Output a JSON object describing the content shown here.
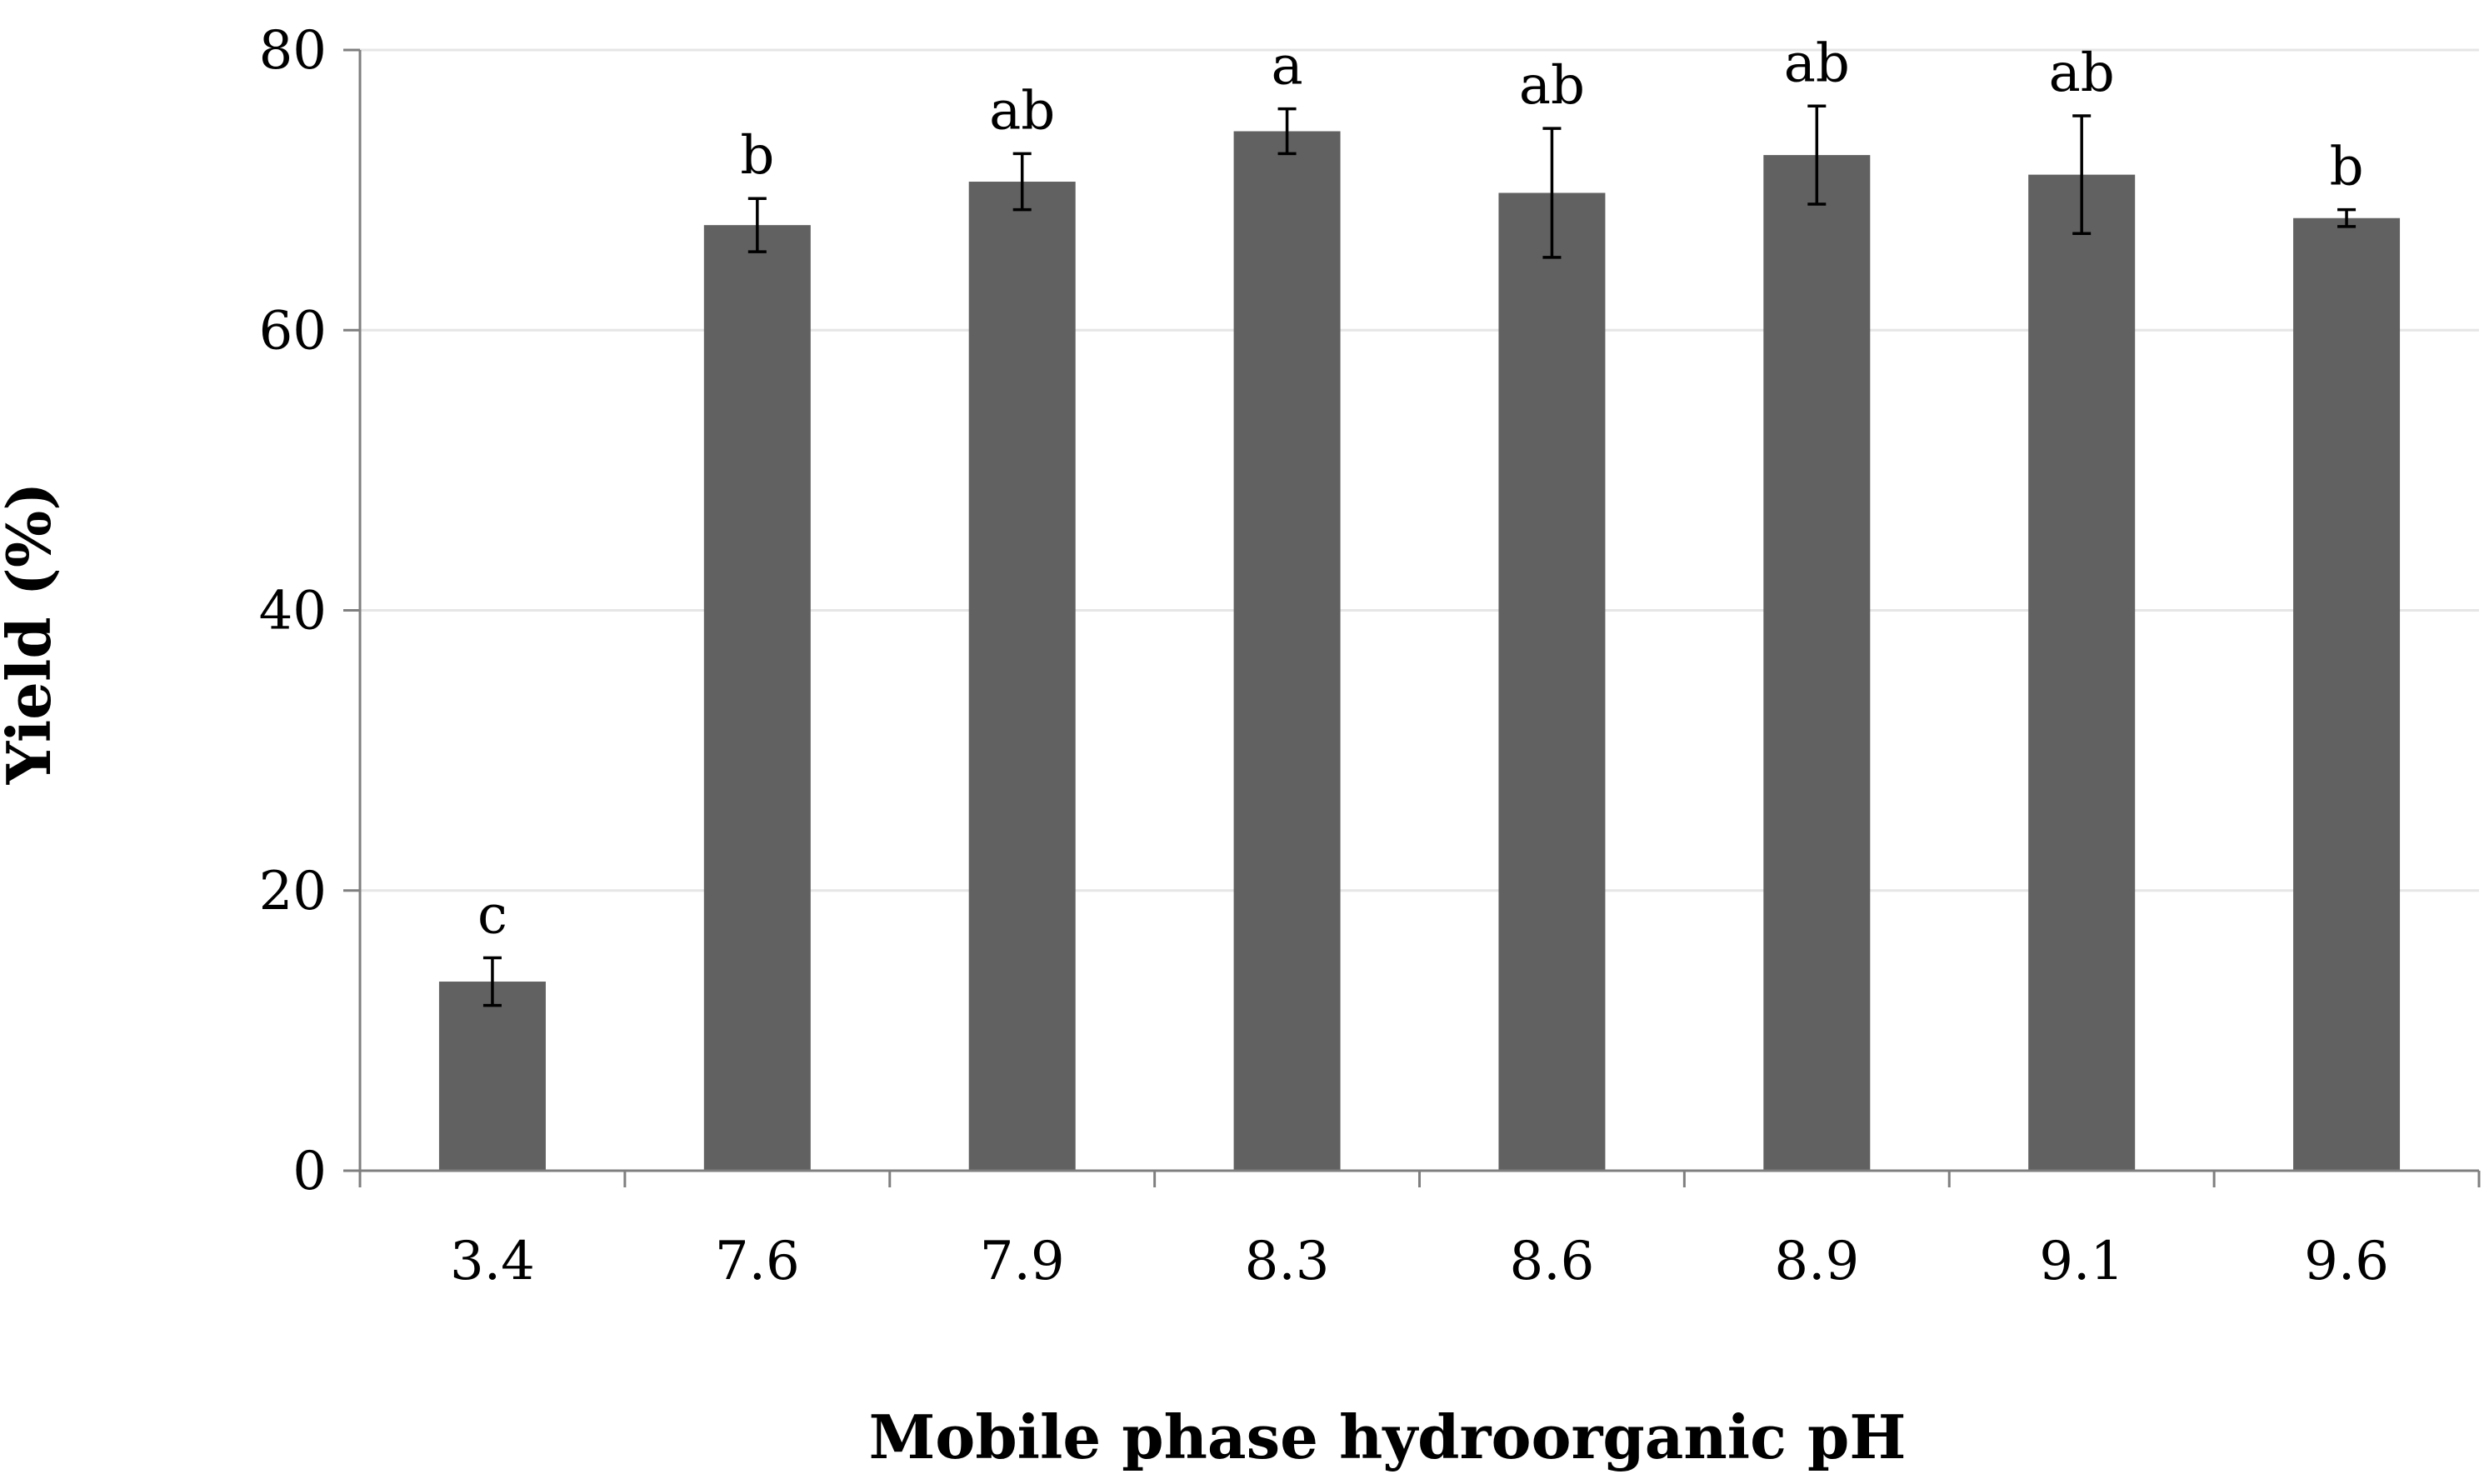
{
  "chart_data": {
    "type": "bar",
    "title": "",
    "xlabel": "Mobile phase hydroorganic pH",
    "ylabel": "Yield (%)",
    "categories": [
      "3.4",
      "7.6",
      "7.9",
      "8.3",
      "8.6",
      "8.9",
      "9.1",
      "9.6"
    ],
    "values": [
      13.5,
      67.5,
      70.6,
      74.2,
      69.8,
      72.5,
      71.1,
      68.0
    ],
    "errors": [
      1.7,
      1.9,
      2.0,
      1.6,
      4.6,
      3.5,
      4.2,
      0.6
    ],
    "significance": [
      "c",
      "b",
      "ab",
      "a",
      "ab",
      "ab",
      "ab",
      "b"
    ],
    "ylim": [
      0,
      80
    ],
    "yticks": [
      0,
      20,
      40,
      60,
      80
    ],
    "grid": true,
    "colors": {
      "bar": "#616161",
      "grid": "#e6e6e6",
      "axis": "#7f7f7f",
      "error": "#000000"
    }
  }
}
